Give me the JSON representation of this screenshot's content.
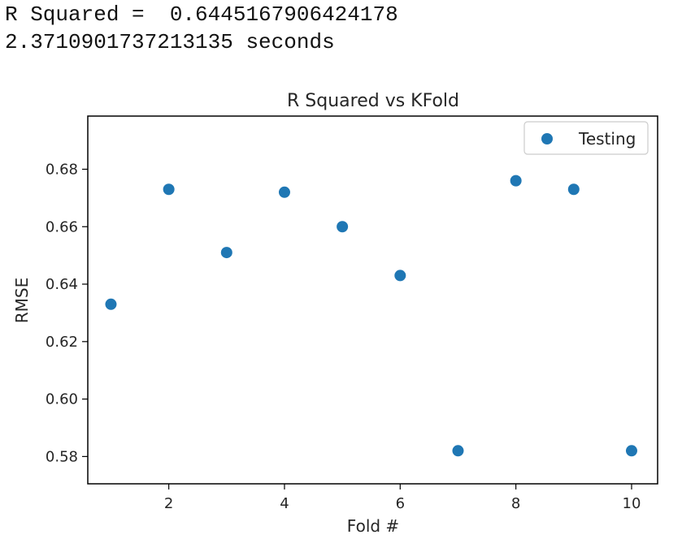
{
  "output": {
    "r_squared_line": "R Squared =  0.6445167906424178",
    "time_line": "2.3710901737213135 seconds"
  },
  "colors": {
    "marker": "#1f77b4",
    "axis": "#000000",
    "text": "#262626"
  },
  "chart_data": {
    "type": "scatter",
    "title": "R Squared vs KFold",
    "xlabel": "Fold #",
    "ylabel": "RMSE",
    "xlim": [
      0.6,
      10.45
    ],
    "ylim": [
      0.5705,
      0.6985
    ],
    "xticks": [
      2,
      4,
      6,
      8,
      10
    ],
    "xtick_labels": [
      "2",
      "4",
      "6",
      "8",
      "10"
    ],
    "yticks": [
      0.58,
      0.6,
      0.62,
      0.64,
      0.66,
      0.68
    ],
    "ytick_labels": [
      "0.58",
      "0.60",
      "0.62",
      "0.64",
      "0.66",
      "0.68"
    ],
    "grid": false,
    "legend": "upper-right",
    "series": [
      {
        "name": "Testing",
        "x": [
          1,
          2,
          3,
          4,
          5,
          6,
          7,
          8,
          9,
          10
        ],
        "y": [
          0.633,
          0.673,
          0.651,
          0.672,
          0.66,
          0.643,
          0.582,
          0.676,
          0.673,
          0.582
        ]
      }
    ]
  }
}
